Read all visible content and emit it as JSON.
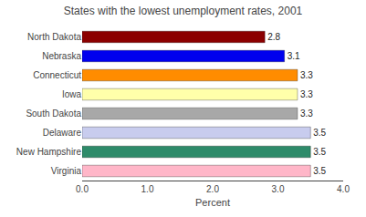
{
  "chart_data": {
    "type": "bar",
    "orientation": "horizontal",
    "title": "States with the lowest unemployment rates, 2001",
    "categories": [
      "North Dakota",
      "Nebraska",
      "Connecticut",
      "Iowa",
      "South Dakota",
      "Delaware",
      "New Hampshire",
      "Virginia"
    ],
    "values": [
      2.8,
      3.1,
      3.3,
      3.3,
      3.3,
      3.5,
      3.5,
      3.5
    ],
    "colors": [
      "#8b0000",
      "#0000ee",
      "#ff8c00",
      "#ffffaa",
      "#a8a8a8",
      "#c8ccee",
      "#2e8b6a",
      "#ffb6c8"
    ],
    "xlabel": "Percent",
    "xlim": [
      0,
      4.0
    ],
    "xticks": [
      {
        "value": 0.0,
        "label": "0.0"
      },
      {
        "value": 1.0,
        "label": "1.0"
      },
      {
        "value": 2.0,
        "label": "2.0"
      },
      {
        "value": 3.0,
        "label": "3.0"
      },
      {
        "value": 4.0,
        "label": "4.0"
      }
    ],
    "data_labels": true,
    "grid": false
  }
}
